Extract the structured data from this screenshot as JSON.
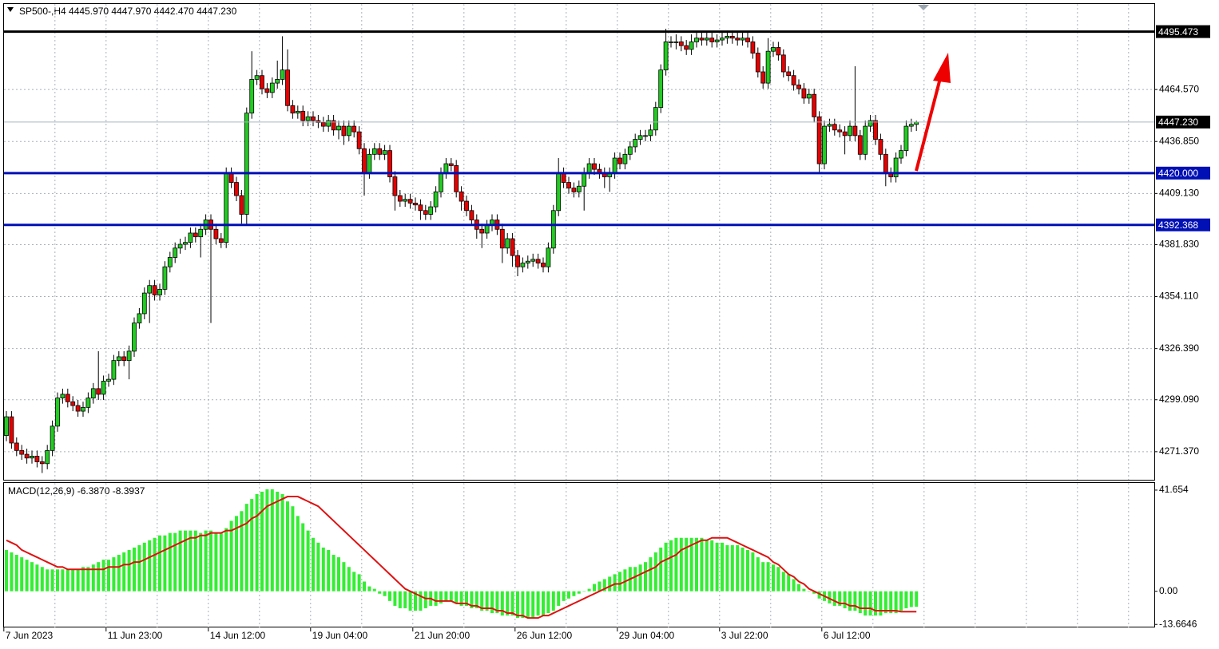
{
  "chart_data": [
    {
      "type": "candlestick",
      "title": "SP500-,H4  4445.970 4447.970 4442.470 4447.230",
      "categories": [
        "7 Jun 2023",
        null,
        null,
        null,
        null,
        null,
        null,
        null,
        null,
        null,
        null,
        null,
        null,
        null,
        null,
        null,
        null,
        null,
        null,
        null,
        "11 Jun 23:00",
        null,
        null,
        null,
        null,
        null,
        null,
        null,
        null,
        null,
        null,
        null,
        null,
        null,
        null,
        null,
        null,
        null,
        null,
        null,
        "14 Jun 12:00",
        null,
        null,
        null,
        null,
        null,
        null,
        null,
        null,
        null,
        null,
        null,
        null,
        null,
        null,
        null,
        null,
        null,
        null,
        null,
        "19 Jun 04:00",
        null,
        null,
        null,
        null,
        null,
        null,
        null,
        null,
        null,
        null,
        null,
        null,
        null,
        null,
        null,
        null,
        null,
        null,
        null,
        "21 Jun 20:00",
        null,
        null,
        null,
        null,
        null,
        null,
        null,
        null,
        null,
        null,
        null,
        null,
        null,
        null,
        null,
        null,
        null,
        null,
        null,
        "26 Jun 12:00",
        null,
        null,
        null,
        null,
        null,
        null,
        null,
        null,
        null,
        null,
        null,
        null,
        null,
        null,
        null,
        null,
        null,
        null,
        null,
        "29 Jun 04:00",
        null,
        null,
        null,
        null,
        null,
        null,
        null,
        null,
        null,
        null,
        null,
        null,
        null,
        null,
        null,
        null,
        null,
        null,
        null,
        "3 Jul 22:00",
        null,
        null,
        null,
        null,
        null,
        null,
        null,
        null,
        null,
        null,
        null,
        null,
        null,
        null,
        null,
        null,
        null,
        null,
        null,
        "6 Jul 12:00",
        null,
        null,
        null,
        null,
        null,
        null,
        null,
        null,
        null,
        null,
        null,
        null,
        null,
        null,
        null,
        null,
        null,
        null
      ],
      "open": [
        4280,
        4290,
        4276,
        4272,
        4270,
        4268,
        4269,
        4266,
        4265,
        4272,
        4285,
        4300,
        4302,
        4298,
        4296,
        4293,
        4295,
        4300,
        4305,
        4302,
        4309,
        4310,
        4320,
        4322,
        4320,
        4325,
        4340,
        4345,
        4356,
        4360,
        4355,
        4358,
        4370,
        4375,
        4380,
        4382,
        4383,
        4388,
        4386,
        4390,
        4395,
        4390,
        4385,
        4383,
        4420,
        4415,
        4408,
        4398,
        4452,
        4470,
        4472,
        4465,
        4463,
        4468,
        4470,
        4475,
        4456,
        4452,
        4453,
        4448,
        4450,
        4448,
        4447,
        4445,
        4448,
        4443,
        4445,
        4440,
        4445,
        4442,
        4433,
        4420,
        4430,
        4433,
        4430,
        4432,
        4418,
        4408,
        4405,
        4406,
        4404,
        4403,
        4400,
        4398,
        4402,
        4410,
        4420,
        4425,
        4424,
        4410,
        4405,
        4400,
        4395,
        4390,
        4388,
        4392,
        4395,
        4390,
        4380,
        4385,
        4376,
        4370,
        4372,
        4373,
        4374,
        4372,
        4370,
        4380,
        4400,
        4420,
        4415,
        4412,
        4410,
        4413,
        4420,
        4425,
        4422,
        4420,
        4418,
        4420,
        4428,
        4425,
        4430,
        4434,
        4438,
        4440,
        4440,
        4443,
        4455,
        4475,
        4490,
        4490,
        4490,
        4488,
        4486,
        4490,
        4492,
        4491,
        4492,
        4490,
        4491,
        4492,
        4493,
        4492,
        4491,
        4492,
        4490,
        4484,
        4474,
        4468,
        4485,
        4487,
        4483,
        4474,
        4472,
        4467,
        4465,
        4460,
        4462,
        4450,
        4425,
        4445,
        4446,
        4443,
        4442,
        4440,
        4445,
        4440,
        4430,
        4445,
        4448,
        4438,
        4430,
        4420,
        4418,
        4428,
        4432,
        4445,
        4445.97
      ],
      "high": [
        4293,
        4293,
        4279,
        4275,
        4273,
        4272,
        4272,
        4269,
        4275,
        4288,
        4303,
        4305,
        4305,
        4301,
        4299,
        4298,
        4303,
        4308,
        4325,
        4312,
        4313,
        4323,
        4325,
        4325,
        4328,
        4343,
        4348,
        4359,
        4363,
        4363,
        4361,
        4373,
        4378,
        4383,
        4385,
        4386,
        4391,
        4391,
        4393,
        4398,
        4398,
        4393,
        4388,
        4423,
        4423,
        4418,
        4411,
        4455,
        4485,
        4475,
        4475,
        4468,
        4471,
        4480,
        4493,
        4486,
        4459,
        4456,
        4456,
        4453,
        4453,
        4451,
        4450,
        4451,
        4451,
        4448,
        4448,
        4448,
        4448,
        4445,
        4436,
        4433,
        4436,
        4436,
        4435,
        4435,
        4421,
        4411,
        4409,
        4409,
        4407,
        4406,
        4403,
        4405,
        4413,
        4423,
        4428,
        4428,
        4427,
        4413,
        4408,
        4403,
        4398,
        4393,
        4395,
        4398,
        4398,
        4393,
        4388,
        4388,
        4379,
        4375,
        4376,
        4377,
        4377,
        4375,
        4383,
        4403,
        4428,
        4423,
        4418,
        4415,
        4416,
        4423,
        4428,
        4428,
        4425,
        4423,
        4423,
        4431,
        4431,
        4433,
        4437,
        4441,
        4443,
        4443,
        4446,
        4458,
        4478,
        4497,
        4493,
        4494,
        4493,
        4491,
        4494,
        4495,
        4495,
        4495,
        4495,
        4494,
        4495,
        4496,
        4496,
        4495,
        4495,
        4495,
        4493,
        4487,
        4477,
        4492,
        4490,
        4490,
        4486,
        4477,
        4475,
        4470,
        4468,
        4465,
        4465,
        4453,
        4448,
        4449,
        4449,
        4446,
        4445,
        4448,
        4477,
        4443,
        4448,
        4451,
        4451,
        4441,
        4433,
        4423,
        4431,
        4435,
        4448,
        4449,
        4447.97
      ],
      "low": [
        4277,
        4273,
        4269,
        4267,
        4265,
        4265,
        4263,
        4260,
        4262,
        4269,
        4282,
        4297,
        4295,
        4293,
        4290,
        4290,
        4292,
        4297,
        4299,
        4299,
        4306,
        4307,
        4317,
        4317,
        4310,
        4322,
        4337,
        4342,
        4340,
        4352,
        4352,
        4355,
        4367,
        4372,
        4377,
        4379,
        4380,
        4383,
        4375,
        4387,
        4340,
        4382,
        4380,
        4380,
        4412,
        4405,
        4393,
        4392,
        4449,
        4467,
        4462,
        4460,
        4460,
        4465,
        4467,
        4453,
        4449,
        4449,
        4445,
        4445,
        4445,
        4444,
        4442,
        4442,
        4440,
        4438,
        4435,
        4437,
        4439,
        4430,
        4408,
        4417,
        4427,
        4427,
        4427,
        4415,
        4400,
        4402,
        4402,
        4401,
        4400,
        4395,
        4395,
        4395,
        4399,
        4407,
        4417,
        4421,
        4407,
        4400,
        4397,
        4392,
        4385,
        4380,
        4385,
        4389,
        4387,
        4372,
        4377,
        4370,
        4365,
        4367,
        4369,
        4370,
        4369,
        4367,
        4367,
        4377,
        4397,
        4412,
        4409,
        4407,
        4407,
        4400,
        4417,
        4419,
        4417,
        4412,
        4410,
        4417,
        4422,
        4422,
        4427,
        4431,
        4435,
        4437,
        4437,
        4440,
        4452,
        4472,
        4487,
        4486,
        4485,
        4483,
        4483,
        4487,
        4488,
        4488,
        4487,
        4487,
        4488,
        4489,
        4489,
        4488,
        4488,
        4487,
        4481,
        4471,
        4465,
        4465,
        4482,
        4480,
        4471,
        4469,
        4464,
        4462,
        4457,
        4457,
        4447,
        4420,
        4422,
        4442,
        4440,
        4439,
        4430,
        4437,
        4437,
        4427,
        4427,
        4442,
        4435,
        4427,
        4413,
        4415,
        4415,
        4425,
        4429,
        4442,
        4442.47
      ],
      "close": [
        4290,
        4276,
        4272,
        4270,
        4268,
        4269,
        4266,
        4265,
        4272,
        4285,
        4300,
        4302,
        4298,
        4296,
        4293,
        4295,
        4300,
        4305,
        4302,
        4309,
        4310,
        4320,
        4322,
        4320,
        4325,
        4340,
        4345,
        4356,
        4360,
        4355,
        4358,
        4370,
        4375,
        4380,
        4382,
        4383,
        4388,
        4386,
        4390,
        4395,
        4390,
        4385,
        4383,
        4420,
        4415,
        4408,
        4398,
        4452,
        4470,
        4472,
        4465,
        4463,
        4468,
        4470,
        4475,
        4456,
        4452,
        4453,
        4448,
        4450,
        4448,
        4447,
        4445,
        4448,
        4443,
        4445,
        4440,
        4445,
        4442,
        4433,
        4420,
        4430,
        4433,
        4430,
        4432,
        4418,
        4408,
        4405,
        4406,
        4404,
        4403,
        4400,
        4398,
        4402,
        4410,
        4420,
        4425,
        4424,
        4410,
        4405,
        4400,
        4395,
        4390,
        4388,
        4392,
        4395,
        4390,
        4380,
        4385,
        4376,
        4370,
        4372,
        4373,
        4374,
        4372,
        4370,
        4380,
        4400,
        4420,
        4415,
        4412,
        4410,
        4413,
        4420,
        4425,
        4422,
        4420,
        4418,
        4420,
        4428,
        4425,
        4430,
        4434,
        4438,
        4440,
        4440,
        4443,
        4455,
        4475,
        4490,
        4490,
        4490,
        4488,
        4486,
        4490,
        4492,
        4491,
        4492,
        4490,
        4491,
        4492,
        4493,
        4492,
        4491,
        4492,
        4490,
        4484,
        4474,
        4468,
        4485,
        4487,
        4483,
        4474,
        4472,
        4467,
        4465,
        4460,
        4462,
        4450,
        4425,
        4445,
        4446,
        4443,
        4442,
        4440,
        4445,
        4440,
        4430,
        4445,
        4448,
        4438,
        4430,
        4420,
        4418,
        4428,
        4432,
        4445,
        4446,
        4447.23
      ],
      "up_color": "#22cc22",
      "down_color": "#e60000",
      "ylim": [
        4256.4,
        4510.2
      ],
      "yticks": [
        {
          "value": 4464.57,
          "label": "4464.570"
        },
        {
          "value": 4436.85,
          "label": "4436.850"
        },
        {
          "value": 4409.13,
          "label": "4409.130"
        },
        {
          "value": 4381.83,
          "label": "4381.830"
        },
        {
          "value": 4354.11,
          "label": "4354.110"
        },
        {
          "value": 4326.39,
          "label": "4326.390"
        },
        {
          "value": 4299.09,
          "label": "4299.090"
        },
        {
          "value": 4271.37,
          "label": "4271.370"
        }
      ],
      "grid": true,
      "hlines": [
        {
          "value": 4495.473,
          "color": "#000000",
          "width": 3
        },
        {
          "value": 4447.23,
          "label": "4447.230",
          "color": "#a8b4c0",
          "width": 1,
          "label_color": "#000000"
        },
        {
          "value": 4420,
          "label": "4420.000",
          "color": "#0010b4",
          "width": 3
        },
        {
          "value": 4392.368,
          "color": "#0010b4",
          "width": 3
        }
      ]
    },
    {
      "type": "macd",
      "title": "MACD(12,26,9) -6.3870 -8.3937",
      "histogram": [
        17,
        16,
        15,
        14,
        13,
        12,
        11,
        10,
        9,
        9,
        9,
        9,
        9,
        9,
        9,
        10,
        10,
        11,
        12,
        13,
        13,
        14,
        15,
        16,
        17,
        18,
        19,
        20,
        21,
        22,
        23,
        23,
        24,
        24,
        25,
        25,
        25,
        25,
        24,
        25,
        25,
        24,
        24,
        26,
        29,
        31,
        33,
        36,
        38,
        40,
        41,
        42,
        42,
        41,
        40,
        37,
        35,
        31,
        28,
        25,
        22,
        20,
        18,
        17,
        15,
        14,
        12,
        10,
        8,
        7,
        4,
        2,
        1,
        -1,
        -2,
        -4,
        -6,
        -7,
        -7,
        -8,
        -8,
        -8,
        -7,
        -6,
        -6,
        -5,
        -4,
        -4,
        -5,
        -6,
        -6,
        -7,
        -7,
        -8,
        -8,
        -9,
        -9,
        -10,
        -10,
        -10,
        -11,
        -11,
        -11,
        -11,
        -10,
        -10,
        -9,
        -8,
        -6,
        -4,
        -3,
        -2,
        -1,
        0,
        1,
        3,
        4,
        5,
        6,
        7,
        8,
        9,
        10,
        10,
        11,
        12,
        14,
        16,
        18,
        20,
        21,
        22,
        22,
        22,
        22,
        22,
        22,
        21,
        21,
        20,
        20,
        19,
        19,
        19,
        18,
        17,
        16,
        14,
        12,
        12,
        11,
        10,
        8,
        7,
        5,
        3,
        1,
        0,
        -1,
        -3,
        -4,
        -5,
        -6,
        -6,
        -7,
        -8,
        -8,
        -9,
        -10,
        -10,
        -10,
        -10,
        -9,
        -9,
        -9,
        -8,
        -7,
        -6.5,
        -6.387
      ],
      "signal": [
        21,
        20,
        19,
        17,
        16,
        15,
        14,
        13,
        12,
        11,
        10,
        10,
        9,
        9,
        9,
        9,
        9,
        9,
        9,
        9,
        10,
        10,
        10,
        11,
        11,
        12,
        12,
        13,
        14,
        15,
        16,
        17,
        18,
        19,
        20,
        21,
        22,
        22,
        23,
        23,
        24,
        24,
        24,
        25,
        25,
        26,
        27,
        28,
        30,
        31,
        33,
        35,
        36,
        37,
        38,
        39,
        39,
        39,
        38,
        37,
        36,
        35,
        33,
        31,
        29,
        27,
        25,
        23,
        21,
        19,
        17,
        15,
        13,
        11,
        9,
        7,
        5,
        3,
        1,
        0,
        -1,
        -2,
        -3,
        -3,
        -4,
        -4,
        -4,
        -4,
        -5,
        -5,
        -5,
        -6,
        -6,
        -7,
        -7,
        -7,
        -8,
        -8,
        -9,
        -9,
        -10,
        -10,
        -11,
        -11,
        -11,
        -10,
        -10,
        -9,
        -8,
        -7,
        -6,
        -5,
        -4,
        -3,
        -2,
        -1,
        0,
        1,
        2,
        3,
        3,
        4,
        5,
        6,
        7,
        8,
        9,
        10,
        12,
        13,
        14,
        15,
        17,
        18,
        19,
        20,
        21,
        21,
        22,
        22,
        22,
        22,
        21,
        20,
        19,
        18,
        17,
        16,
        15,
        14,
        12,
        11,
        9,
        7,
        6,
        4,
        3,
        1,
        0,
        -1,
        -2,
        -3,
        -4,
        -5,
        -5,
        -6,
        -6,
        -7,
        -7,
        -7,
        -8,
        -8,
        -8,
        -8,
        -8,
        -8.4,
        -8.4,
        -8.4,
        -8.3937
      ],
      "hist_color": "#33ee33",
      "signal_color": "#e01010",
      "ylim": [
        -14.9,
        44.6
      ],
      "yticks": [
        41.654,
        {
          "value": 0,
          "label": "0.00"
        },
        -13.6646
      ]
    }
  ]
}
